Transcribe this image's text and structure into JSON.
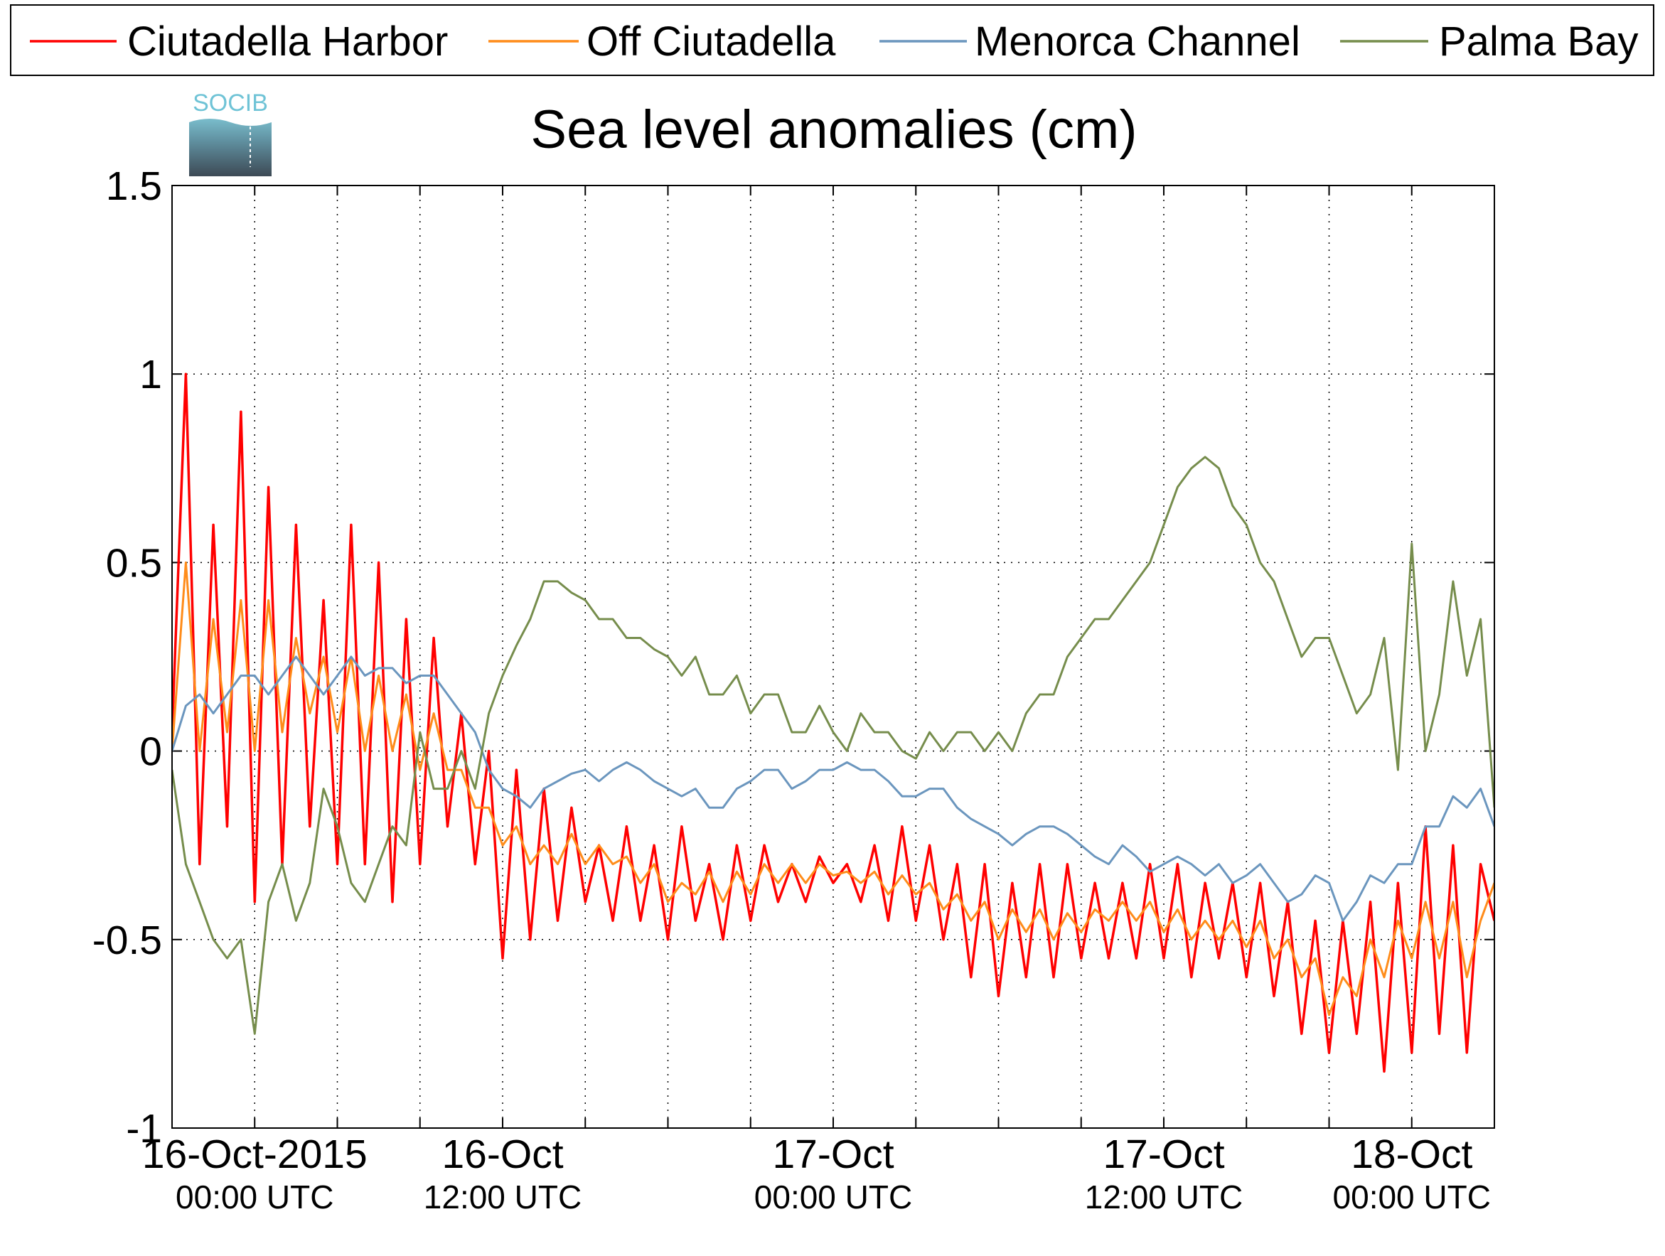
{
  "logo": "SOCIB",
  "chart_data": {
    "type": "line",
    "title": "Sea level anomalies (cm)",
    "xlim": [
      0,
      48
    ],
    "xticks": [
      {
        "value": 3,
        "label": "16-Oct-2015"
      },
      {
        "value": 12,
        "label": "16-Oct"
      },
      {
        "value": 24,
        "label": "17-Oct"
      },
      {
        "value": 36,
        "label": "17-Oct"
      },
      {
        "value": 45,
        "label": "18-Oct"
      }
    ],
    "xtick_sublabels": [
      "00:00 UTC",
      "12:00 UTC",
      "00:00 UTC",
      "12:00 UTC",
      "00:00 UTC"
    ],
    "xminor": [
      6,
      9,
      15,
      18,
      21,
      27,
      30,
      33,
      39,
      42
    ],
    "ylim": [
      -1,
      1.5
    ],
    "yticks": [
      -1,
      -0.5,
      0,
      0.5,
      1,
      1.5
    ],
    "grid": true,
    "legend": "top",
    "x": [
      0,
      0.5,
      1,
      1.5,
      2,
      2.5,
      3,
      3.5,
      4,
      4.5,
      5,
      5.5,
      6,
      6.5,
      7,
      7.5,
      8,
      8.5,
      9,
      9.5,
      10,
      10.5,
      11,
      11.5,
      12,
      12.5,
      13,
      13.5,
      14,
      14.5,
      15,
      15.5,
      16,
      16.5,
      17,
      17.5,
      18,
      18.5,
      19,
      19.5,
      20,
      20.5,
      21,
      21.5,
      22,
      22.5,
      23,
      23.5,
      24,
      24.5,
      25,
      25.5,
      26,
      26.5,
      27,
      27.5,
      28,
      28.5,
      29,
      29.5,
      30,
      30.5,
      31,
      31.5,
      32,
      32.5,
      33,
      33.5,
      34,
      34.5,
      35,
      35.5,
      36,
      36.5,
      37,
      37.5,
      38,
      38.5,
      39,
      39.5,
      40,
      40.5,
      41,
      41.5,
      42,
      42.5,
      43,
      43.5,
      44,
      44.5,
      45,
      45.5,
      46,
      46.5,
      47,
      47.5,
      48
    ],
    "series": [
      {
        "name": "Ciutadella Harbor",
        "color": "#ff0000",
        "values": [
          0.05,
          1.0,
          -0.3,
          0.6,
          -0.2,
          0.9,
          -0.4,
          0.7,
          -0.3,
          0.6,
          -0.2,
          0.4,
          -0.3,
          0.6,
          -0.3,
          0.5,
          -0.4,
          0.35,
          -0.3,
          0.3,
          -0.2,
          0.1,
          -0.3,
          0.0,
          -0.55,
          -0.05,
          -0.5,
          -0.1,
          -0.45,
          -0.15,
          -0.4,
          -0.25,
          -0.45,
          -0.2,
          -0.45,
          -0.25,
          -0.5,
          -0.2,
          -0.45,
          -0.3,
          -0.5,
          -0.25,
          -0.45,
          -0.25,
          -0.4,
          -0.3,
          -0.4,
          -0.28,
          -0.35,
          -0.3,
          -0.4,
          -0.25,
          -0.45,
          -0.2,
          -0.45,
          -0.25,
          -0.5,
          -0.3,
          -0.6,
          -0.3,
          -0.65,
          -0.35,
          -0.6,
          -0.3,
          -0.6,
          -0.3,
          -0.55,
          -0.35,
          -0.55,
          -0.35,
          -0.55,
          -0.3,
          -0.55,
          -0.3,
          -0.6,
          -0.35,
          -0.55,
          -0.35,
          -0.6,
          -0.35,
          -0.65,
          -0.4,
          -0.75,
          -0.45,
          -0.8,
          -0.45,
          -0.75,
          -0.4,
          -0.85,
          -0.35,
          -0.8,
          -0.2,
          -0.75,
          -0.25,
          -0.8,
          -0.3,
          -0.45
        ]
      },
      {
        "name": "Off Ciutadella",
        "color": "#ff8c1a",
        "values": [
          0.0,
          0.5,
          0.0,
          0.35,
          0.05,
          0.4,
          0.0,
          0.4,
          0.05,
          0.3,
          0.1,
          0.25,
          0.05,
          0.25,
          0.0,
          0.2,
          0.0,
          0.15,
          -0.05,
          0.1,
          -0.05,
          -0.05,
          -0.15,
          -0.15,
          -0.25,
          -0.2,
          -0.3,
          -0.25,
          -0.3,
          -0.22,
          -0.3,
          -0.25,
          -0.3,
          -0.28,
          -0.35,
          -0.3,
          -0.4,
          -0.35,
          -0.38,
          -0.32,
          -0.4,
          -0.32,
          -0.38,
          -0.3,
          -0.35,
          -0.3,
          -0.35,
          -0.3,
          -0.33,
          -0.32,
          -0.35,
          -0.32,
          -0.38,
          -0.33,
          -0.38,
          -0.35,
          -0.42,
          -0.38,
          -0.45,
          -0.4,
          -0.5,
          -0.42,
          -0.48,
          -0.42,
          -0.5,
          -0.43,
          -0.48,
          -0.42,
          -0.45,
          -0.4,
          -0.45,
          -0.4,
          -0.48,
          -0.42,
          -0.5,
          -0.45,
          -0.5,
          -0.45,
          -0.52,
          -0.45,
          -0.55,
          -0.5,
          -0.6,
          -0.55,
          -0.7,
          -0.6,
          -0.65,
          -0.5,
          -0.6,
          -0.45,
          -0.55,
          -0.4,
          -0.55,
          -0.4,
          -0.6,
          -0.45,
          -0.35
        ]
      },
      {
        "name": "Menorca Channel",
        "color": "#6b96be",
        "values": [
          0.0,
          0.12,
          0.15,
          0.1,
          0.15,
          0.2,
          0.2,
          0.15,
          0.2,
          0.25,
          0.2,
          0.15,
          0.2,
          0.25,
          0.2,
          0.22,
          0.22,
          0.18,
          0.2,
          0.2,
          0.15,
          0.1,
          0.05,
          -0.05,
          -0.1,
          -0.12,
          -0.15,
          -0.1,
          -0.08,
          -0.06,
          -0.05,
          -0.08,
          -0.05,
          -0.03,
          -0.05,
          -0.08,
          -0.1,
          -0.12,
          -0.1,
          -0.15,
          -0.15,
          -0.1,
          -0.08,
          -0.05,
          -0.05,
          -0.1,
          -0.08,
          -0.05,
          -0.05,
          -0.03,
          -0.05,
          -0.05,
          -0.08,
          -0.12,
          -0.12,
          -0.1,
          -0.1,
          -0.15,
          -0.18,
          -0.2,
          -0.22,
          -0.25,
          -0.22,
          -0.2,
          -0.2,
          -0.22,
          -0.25,
          -0.28,
          -0.3,
          -0.25,
          -0.28,
          -0.32,
          -0.3,
          -0.28,
          -0.3,
          -0.33,
          -0.3,
          -0.35,
          -0.33,
          -0.3,
          -0.35,
          -0.4,
          -0.38,
          -0.33,
          -0.35,
          -0.45,
          -0.4,
          -0.33,
          -0.35,
          -0.3,
          -0.3,
          -0.2,
          -0.2,
          -0.12,
          -0.15,
          -0.1,
          -0.2
        ]
      },
      {
        "name": "Palma Bay",
        "color": "#768d4c",
        "values": [
          -0.05,
          -0.3,
          -0.4,
          -0.5,
          -0.55,
          -0.5,
          -0.75,
          -0.4,
          -0.3,
          -0.45,
          -0.35,
          -0.1,
          -0.2,
          -0.35,
          -0.4,
          -0.3,
          -0.2,
          -0.25,
          0.05,
          -0.1,
          -0.1,
          0.0,
          -0.1,
          0.1,
          0.2,
          0.28,
          0.35,
          0.45,
          0.45,
          0.42,
          0.4,
          0.35,
          0.35,
          0.3,
          0.3,
          0.27,
          0.25,
          0.2,
          0.25,
          0.15,
          0.15,
          0.2,
          0.1,
          0.15,
          0.15,
          0.05,
          0.05,
          0.12,
          0.05,
          0.0,
          0.1,
          0.05,
          0.05,
          0.0,
          -0.02,
          0.05,
          0.0,
          0.05,
          0.05,
          0.0,
          0.05,
          0.0,
          0.1,
          0.15,
          0.15,
          0.25,
          0.3,
          0.35,
          0.35,
          0.4,
          0.45,
          0.5,
          0.6,
          0.7,
          0.75,
          0.78,
          0.75,
          0.65,
          0.6,
          0.5,
          0.45,
          0.35,
          0.25,
          0.3,
          0.3,
          0.2,
          0.1,
          0.15,
          0.3,
          -0.05,
          0.55,
          0.0,
          0.15,
          0.45,
          0.2,
          0.35,
          -0.15
        ]
      }
    ]
  }
}
